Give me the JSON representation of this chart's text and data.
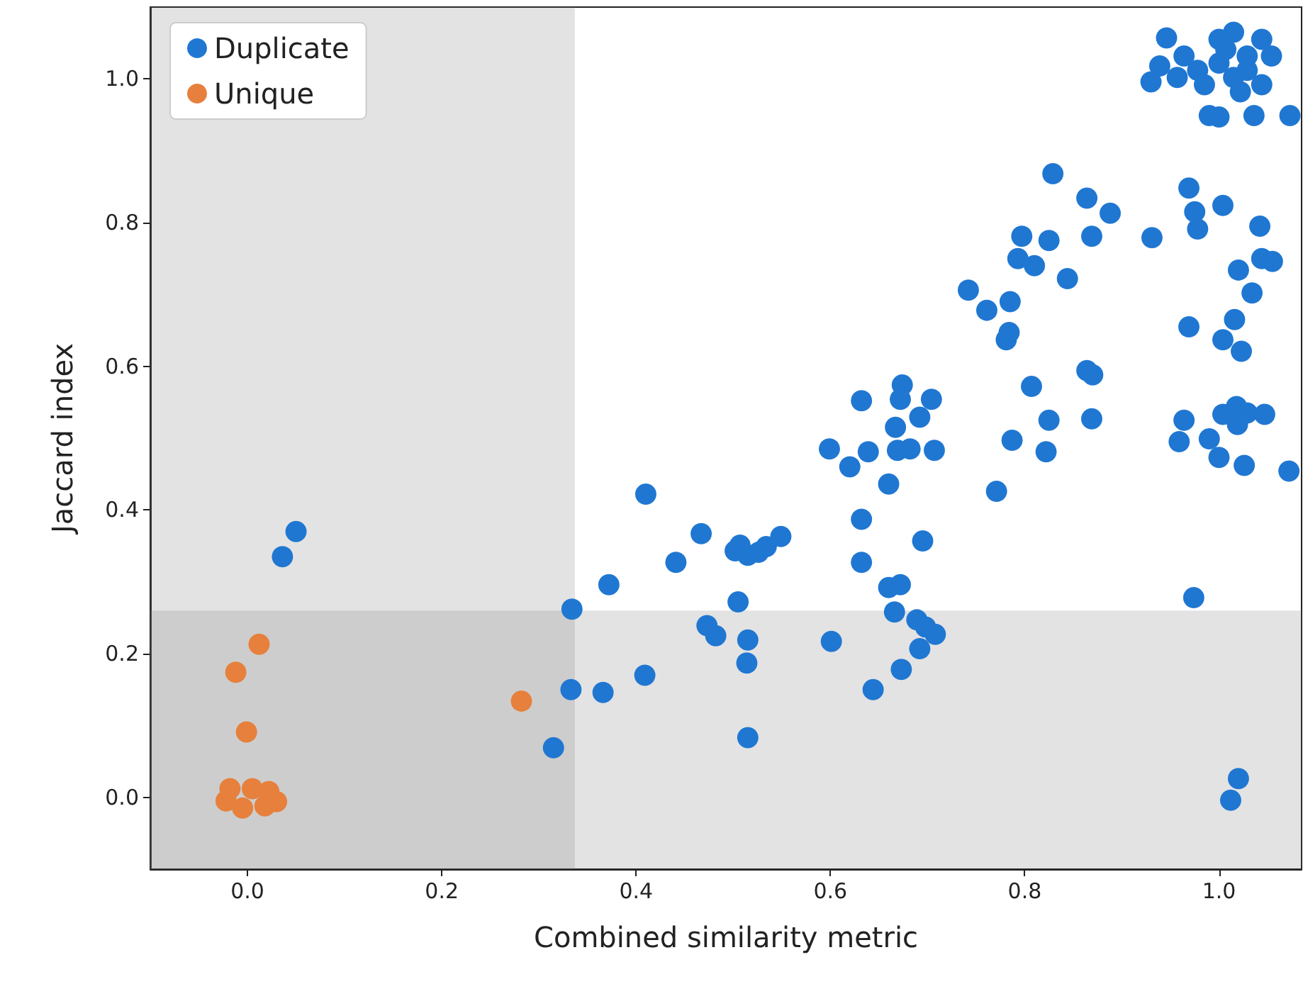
{
  "chart_data": {
    "type": "scatter",
    "xlabel": "Combined similarity metric",
    "ylabel": "Jaccard index",
    "xlim": [
      -0.1,
      1.085
    ],
    "ylim": [
      -0.1,
      1.1
    ],
    "xticks": [
      {
        "value": 0,
        "label": "0.0"
      },
      0.2,
      0.4,
      0.6,
      0.8,
      {
        "value": 1,
        "label": "1.0"
      }
    ],
    "yticks": [
      {
        "value": 0,
        "label": "0.0"
      },
      0.2,
      0.4,
      0.6,
      0.8,
      {
        "value": 1,
        "label": "1.0"
      }
    ],
    "grid": false,
    "legend": "top left",
    "marker": "circle",
    "bands": [
      {
        "axis": "x",
        "from": -0.1,
        "to": 0.337,
        "color": "#808080"
      },
      {
        "axis": "y",
        "from": -0.1,
        "to": 0.26,
        "color": "#808080"
      }
    ],
    "series": [
      {
        "name": "Duplicate",
        "color": "#1f77d2",
        "x": [
          0.036,
          0.05,
          0.334,
          0.333,
          0.315,
          0.366,
          0.372,
          0.409,
          0.41,
          0.441,
          0.467,
          0.473,
          0.482,
          0.502,
          0.507,
          0.515,
          0.526,
          0.534,
          0.549,
          0.505,
          0.515,
          0.514,
          0.515,
          0.601,
          0.644,
          0.599,
          0.632,
          0.62,
          0.639,
          0.66,
          0.632,
          0.632,
          0.66,
          0.672,
          0.666,
          0.689,
          0.698,
          0.708,
          0.692,
          0.673,
          0.695,
          0.674,
          0.672,
          0.704,
          0.667,
          0.692,
          0.669,
          0.682,
          0.707,
          0.829,
          0.864,
          0.888,
          0.869,
          0.825,
          0.797,
          0.793,
          0.81,
          0.844,
          0.742,
          0.761,
          0.785,
          0.781,
          0.784,
          0.931,
          0.969,
          0.975,
          0.978,
          1.004,
          1.042,
          1.044,
          1.055,
          1.02,
          1.034,
          0.969,
          1.016,
          1.004,
          1.023,
          0.864,
          0.87,
          0.807,
          0.825,
          0.869,
          0.787,
          0.822,
          0.771,
          0.964,
          0.959,
          0.99,
          1.0,
          1.026,
          1.072,
          1.004,
          1.018,
          1.029,
          1.047,
          1.019,
          0.974,
          1.02,
          1.012,
          0.946,
          0.93,
          0.939,
          0.99,
          1.0,
          1.036,
          1.073,
          1.044,
          1.015,
          1.0,
          1.054,
          0.964,
          0.978,
          0.985,
          1.0,
          1.015,
          1.029,
          1.022,
          1.044,
          1.007,
          0.957,
          1.029
        ],
        "values": [
          0.335,
          0.37,
          0.262,
          0.15,
          0.069,
          0.146,
          0.296,
          0.17,
          0.422,
          0.327,
          0.367,
          0.239,
          0.225,
          0.343,
          0.351,
          0.337,
          0.341,
          0.349,
          0.363,
          0.272,
          0.219,
          0.187,
          0.083,
          0.217,
          0.15,
          0.485,
          0.552,
          0.46,
          0.481,
          0.436,
          0.387,
          0.327,
          0.292,
          0.296,
          0.258,
          0.247,
          0.237,
          0.227,
          0.207,
          0.178,
          0.357,
          0.574,
          0.554,
          0.554,
          0.515,
          0.529,
          0.483,
          0.485,
          0.483,
          0.868,
          0.834,
          0.813,
          0.781,
          0.775,
          0.781,
          0.75,
          0.74,
          0.722,
          0.706,
          0.678,
          0.69,
          0.637,
          0.647,
          0.779,
          0.848,
          0.815,
          0.791,
          0.824,
          0.795,
          0.75,
          0.746,
          0.734,
          0.702,
          0.655,
          0.665,
          0.637,
          0.621,
          0.594,
          0.588,
          0.572,
          0.525,
          0.527,
          0.497,
          0.481,
          0.426,
          0.525,
          0.495,
          0.499,
          0.473,
          0.462,
          0.454,
          0.533,
          0.544,
          0.535,
          0.533,
          0.519,
          0.278,
          0.026,
          -0.004,
          1.057,
          0.996,
          1.018,
          0.949,
          0.947,
          0.949,
          0.949,
          1.055,
          1.065,
          1.055,
          1.032,
          1.032,
          1.012,
          0.992,
          1.022,
          1.002,
          1.032,
          0.982,
          0.992,
          1.041,
          1.002,
          1.012
        ]
      },
      {
        "name": "Unique",
        "color": "#e6803c",
        "x": [
          -0.012,
          0.012,
          -0.001,
          0.282,
          -0.022,
          -0.01,
          0.022,
          0.03,
          -0.018,
          0.005,
          0.018,
          -0.005
        ],
        "values": [
          0.174,
          0.213,
          0.091,
          0.134,
          -0.005,
          null,
          0.008,
          -0.006,
          0.012,
          0.012,
          -0.012,
          -0.015
        ]
      }
    ]
  }
}
